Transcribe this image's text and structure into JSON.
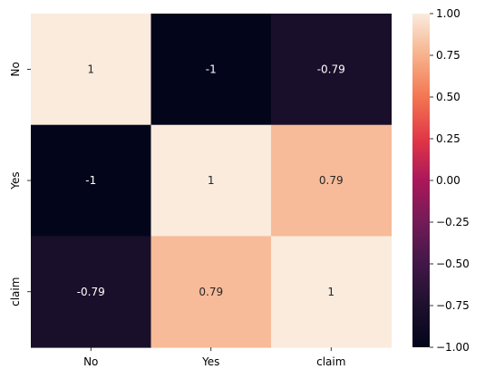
{
  "chart_data": {
    "type": "heatmap",
    "title": "",
    "xlabel": "",
    "ylabel": "",
    "x_categories": [
      "No",
      "Yes",
      "claim"
    ],
    "y_categories": [
      "No",
      "Yes",
      "claim"
    ],
    "values": [
      [
        1,
        -1,
        -0.79
      ],
      [
        -1,
        1,
        0.79
      ],
      [
        -0.79,
        0.79,
        1
      ]
    ],
    "annotations": [
      [
        "1",
        "-1",
        "-0.79"
      ],
      [
        "-1",
        "1",
        "0.79"
      ],
      [
        "-0.79",
        "0.79",
        "1"
      ]
    ],
    "colorbar": {
      "vmin": -1,
      "vmax": 1,
      "colormap": "rocket",
      "tick_values": [
        1,
        0.75,
        0.5,
        0.25,
        0,
        -0.25,
        -0.5,
        -0.75,
        -1
      ],
      "tick_labels": [
        "1.00",
        "0.75",
        "0.50",
        "0.25",
        "0.00",
        "−0.25",
        "−0.50",
        "−0.75",
        "−1.00"
      ]
    },
    "colors": {
      "high": "#faebdd",
      "positive_mid": "#f4b998",
      "negative_mid": "#2c1d3a",
      "low": "#03051a"
    }
  }
}
